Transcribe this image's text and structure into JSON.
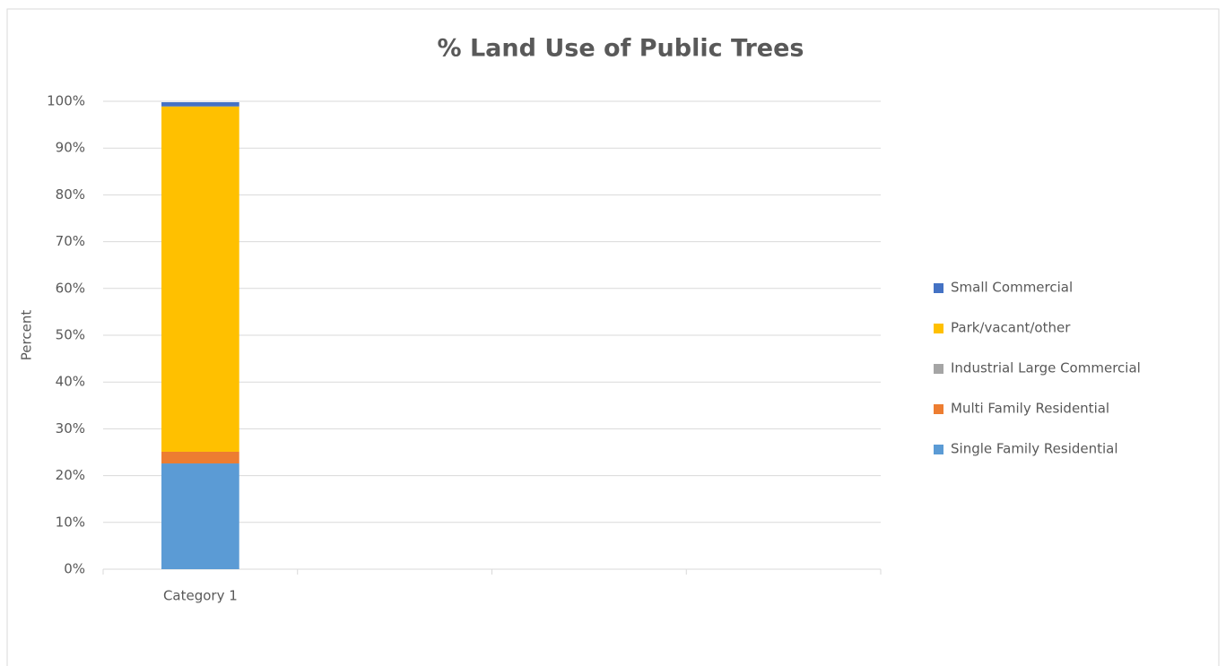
{
  "chart_data": {
    "type": "stacked_bar",
    "title": "% Land Use of Public Trees",
    "ylabel": "Percent",
    "categories": [
      "Category 1",
      null,
      null,
      null
    ],
    "series": [
      {
        "name": "Single Family Residential",
        "color": "#5b9bd5",
        "values": [
          22.6,
          null,
          null,
          null
        ]
      },
      {
        "name": "Multi Family Residential",
        "color": "#ed7d31",
        "values": [
          2.5,
          null,
          null,
          null
        ]
      },
      {
        "name": "Industrial Large Commercial",
        "color": "#a5a5a5",
        "values": [
          0,
          null,
          null,
          null
        ]
      },
      {
        "name": "Park/vacant/other",
        "color": "#ffc000",
        "values": [
          73.8,
          null,
          null,
          null
        ]
      },
      {
        "name": "Small Commercial",
        "color": "#4472c4",
        "values": [
          0.9,
          null,
          null,
          null
        ]
      }
    ],
    "ylim": [
      0,
      100
    ],
    "yticks": [
      {
        "value": 0,
        "label": "0%"
      },
      {
        "value": 10,
        "label": "10%"
      },
      {
        "value": 20,
        "label": "20%"
      },
      {
        "value": 30,
        "label": "30%"
      },
      {
        "value": 40,
        "label": "40%"
      },
      {
        "value": 50,
        "label": "50%"
      },
      {
        "value": 60,
        "label": "60%"
      },
      {
        "value": 70,
        "label": "70%"
      },
      {
        "value": 80,
        "label": "80%"
      },
      {
        "value": 90,
        "label": "90%"
      },
      {
        "value": 100,
        "label": "100%"
      }
    ],
    "grid": true,
    "legend": "right"
  }
}
